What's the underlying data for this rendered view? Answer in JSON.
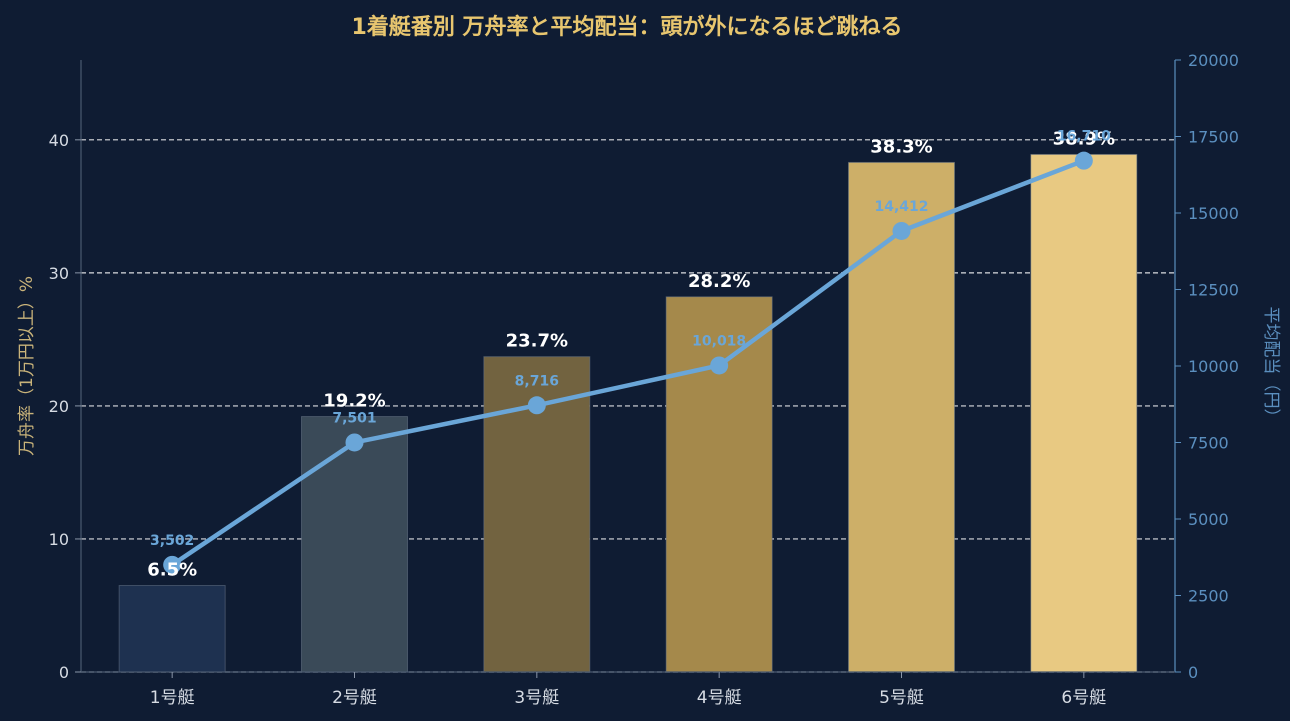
{
  "chart_data": {
    "type": "bar",
    "title": "1着艇番別 万舟率と平均配当：頭が外になるほど跳ねる",
    "categories": [
      "1号艇",
      "2号艇",
      "3号艇",
      "4号艇",
      "5号艇",
      "6号艇"
    ],
    "series": [
      {
        "kind": "bar",
        "axis": "left",
        "values": [
          6.5,
          19.2,
          23.7,
          28.2,
          38.3,
          38.9
        ],
        "labels": [
          "6.5%",
          "19.2%",
          "23.7%",
          "28.2%",
          "38.3%",
          "38.9%"
        ],
        "colors": [
          "#1e3150",
          "#3a4a58",
          "#726340",
          "#a5894b",
          "#cdaf68",
          "#e8c982"
        ]
      },
      {
        "kind": "line",
        "axis": "right",
        "values": [
          3502,
          7501,
          8716,
          10018,
          14412,
          16710
        ],
        "labels": [
          "3,502",
          "7,501",
          "8,716",
          "10,018",
          "14,412",
          "16,710"
        ],
        "color": "#6aa6d8"
      }
    ],
    "ylabel": "万舟率（1万円以上）%",
    "ylabel_right": "平均配当（円）",
    "ylim": [
      0,
      46
    ],
    "ylim_right": [
      0,
      20000
    ],
    "yticks": [
      0,
      10,
      20,
      30,
      40
    ],
    "yticks_right": [
      0,
      2500,
      5000,
      7500,
      10000,
      12500,
      15000,
      17500,
      20000
    ],
    "grid": true,
    "colors": {
      "background": "#0f1c33",
      "title": "#e8c66f",
      "left_axis": "#c9b37a",
      "right_axis": "#5b8fbf",
      "tick_left": "#d6dbe3",
      "category": "#d6dbe3",
      "grid": "#ffffff",
      "bar_label": "#ffffff"
    }
  }
}
